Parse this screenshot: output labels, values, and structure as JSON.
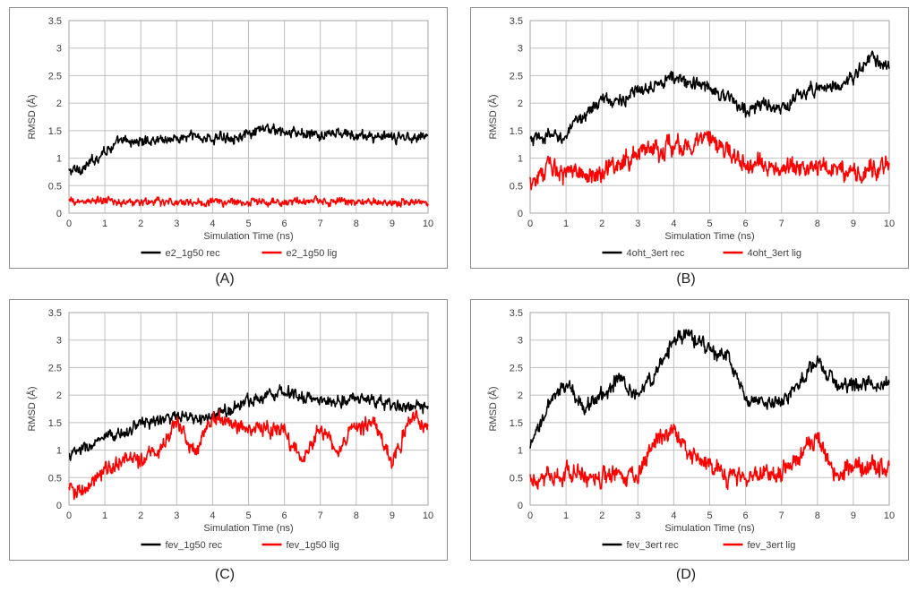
{
  "axes": {
    "xlabel": "Simulation Time (ns)",
    "ylabel": "RMSD (Å)",
    "xlim": [
      0,
      10
    ],
    "ylim": [
      0,
      3.5
    ],
    "xticks": [
      0,
      1,
      2,
      3,
      4,
      5,
      6,
      7,
      8,
      9,
      10
    ],
    "yticks": [
      "0",
      "0.5",
      "1",
      "1.5",
      "2",
      "2.5",
      "3",
      "3.5"
    ],
    "grid": true,
    "legend": "bottom"
  },
  "colors": {
    "rec": "#000000",
    "lig": "#ff0000",
    "grid": "#c0c0c0",
    "frame": "#8c8c8c"
  },
  "chart_data": [
    {
      "type": "line",
      "caption": "(A)",
      "xlabel": "Simulation Time (ns)",
      "ylabel": "RMSD (Å)",
      "xlim": [
        0,
        10
      ],
      "ylim": [
        0,
        3.5
      ],
      "x": [
        0,
        0.5,
        1,
        1.5,
        2,
        2.5,
        3,
        3.5,
        4,
        4.5,
        5,
        5.5,
        6,
        6.5,
        7,
        7.5,
        8,
        8.5,
        9,
        9.5,
        10
      ],
      "series": [
        {
          "name": "e2_1g50 rec",
          "color": "#000000",
          "noise": 0.08,
          "values": [
            0.75,
            0.85,
            1.15,
            1.3,
            1.3,
            1.35,
            1.35,
            1.4,
            1.35,
            1.4,
            1.4,
            1.55,
            1.45,
            1.45,
            1.4,
            1.45,
            1.4,
            1.4,
            1.35,
            1.4,
            1.4
          ]
        },
        {
          "name": "e2_1g50 lig",
          "color": "#ff0000",
          "noise": 0.06,
          "values": [
            0.2,
            0.22,
            0.22,
            0.2,
            0.2,
            0.2,
            0.2,
            0.2,
            0.2,
            0.2,
            0.2,
            0.2,
            0.2,
            0.2,
            0.22,
            0.2,
            0.2,
            0.2,
            0.2,
            0.2,
            0.2
          ]
        }
      ]
    },
    {
      "type": "line",
      "caption": "(B)",
      "xlabel": "Simulation Time (ns)",
      "ylabel": "RMSD (Å)",
      "xlim": [
        0,
        10
      ],
      "ylim": [
        0,
        3.5
      ],
      "x": [
        0,
        0.5,
        1,
        1.5,
        2,
        2.5,
        3,
        3.5,
        4,
        4.5,
        5,
        5.5,
        6,
        6.5,
        7,
        7.5,
        8,
        8.5,
        9,
        9.5,
        10
      ],
      "series": [
        {
          "name": "4oht_3ert rec",
          "color": "#000000",
          "noise": 0.1,
          "values": [
            1.3,
            1.4,
            1.4,
            1.8,
            2.05,
            2.05,
            2.2,
            2.4,
            2.45,
            2.35,
            2.3,
            2.1,
            1.85,
            2.0,
            1.85,
            2.15,
            2.3,
            2.3,
            2.45,
            2.85,
            2.6
          ]
        },
        {
          "name": "4oht_3ert lig",
          "color": "#ff0000",
          "noise": 0.15,
          "values": [
            0.6,
            0.8,
            0.75,
            0.7,
            0.75,
            0.9,
            1.1,
            1.2,
            1.2,
            1.25,
            1.35,
            1.1,
            0.9,
            0.85,
            0.85,
            0.8,
            0.85,
            0.85,
            0.7,
            0.8,
            0.9
          ]
        }
      ]
    },
    {
      "type": "line",
      "caption": "(C)",
      "xlabel": "Simulation Time (ns)",
      "ylabel": "RMSD (Å)",
      "xlim": [
        0,
        10
      ],
      "ylim": [
        0,
        3.5
      ],
      "x": [
        0,
        0.5,
        1,
        1.5,
        2,
        2.5,
        3,
        3.5,
        4,
        4.5,
        5,
        5.5,
        6,
        6.5,
        7,
        7.5,
        8,
        8.5,
        9,
        9.5,
        10
      ],
      "series": [
        {
          "name": "fev_1g50 rec",
          "color": "#000000",
          "noise": 0.09,
          "values": [
            0.9,
            1.05,
            1.2,
            1.3,
            1.5,
            1.55,
            1.6,
            1.55,
            1.6,
            1.75,
            1.9,
            2.0,
            2.1,
            1.95,
            1.9,
            1.9,
            1.95,
            1.9,
            1.8,
            1.8,
            1.75
          ]
        },
        {
          "name": "fev_1g50 lig",
          "color": "#ff0000",
          "noise": 0.12,
          "values": [
            0.3,
            0.25,
            0.65,
            0.8,
            0.85,
            0.95,
            1.55,
            1.0,
            1.65,
            1.45,
            1.4,
            1.4,
            1.35,
            0.8,
            1.4,
            1.0,
            1.4,
            1.45,
            0.8,
            1.6,
            1.35
          ]
        }
      ]
    },
    {
      "type": "line",
      "caption": "(D)",
      "xlabel": "Simulation Time (ns)",
      "ylabel": "RMSD (Å)",
      "xlim": [
        0,
        10
      ],
      "ylim": [
        0,
        3.5
      ],
      "x": [
        0,
        0.5,
        1,
        1.5,
        2,
        2.5,
        3,
        3.5,
        4,
        4.5,
        5,
        5.5,
        6,
        6.5,
        7,
        7.5,
        8,
        8.5,
        9,
        9.5,
        10
      ],
      "series": [
        {
          "name": "fev_3ert rec",
          "color": "#000000",
          "noise": 0.11,
          "values": [
            1.0,
            1.8,
            2.2,
            1.8,
            2.0,
            2.3,
            2.0,
            2.4,
            3.0,
            3.1,
            2.8,
            2.7,
            1.9,
            1.85,
            1.9,
            2.2,
            2.6,
            2.2,
            2.2,
            2.2,
            2.2
          ]
        },
        {
          "name": "fev_3ert lig",
          "color": "#ff0000",
          "noise": 0.14,
          "values": [
            0.55,
            0.5,
            0.55,
            0.5,
            0.5,
            0.55,
            0.5,
            1.3,
            1.3,
            0.9,
            0.8,
            0.5,
            0.55,
            0.6,
            0.55,
            0.95,
            1.25,
            0.55,
            0.7,
            0.75,
            0.6
          ]
        }
      ]
    }
  ]
}
